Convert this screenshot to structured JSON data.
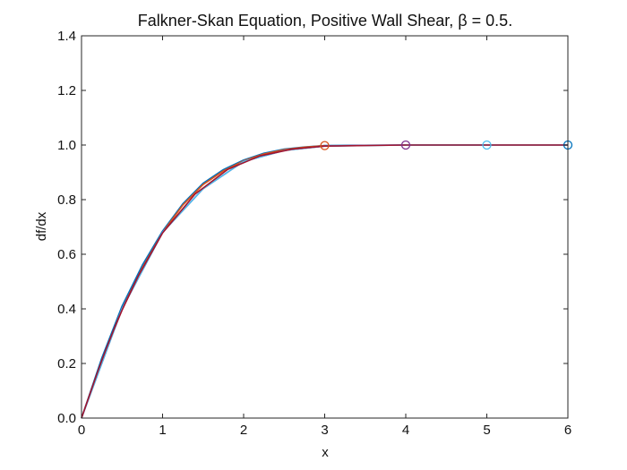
{
  "chart_data": {
    "type": "line",
    "title": "Falkner-Skan Equation, Positive Wall Shear, β = 0.5.",
    "xlabel": "x",
    "ylabel": "df/dx",
    "xlim": [
      0,
      6
    ],
    "ylim": [
      0,
      1.4
    ],
    "xticks": [
      "0",
      "1",
      "2",
      "3",
      "4",
      "5",
      "6"
    ],
    "yticks": [
      "0.0",
      "0.2",
      "0.4",
      "0.6",
      "0.8",
      "1.0",
      "1.2",
      "1.4"
    ],
    "grid": false,
    "series": [
      {
        "color": "#0072BD",
        "x": [
          0,
          0.25,
          0.5,
          0.75,
          1.0,
          1.25,
          1.5,
          1.75,
          2.0,
          2.25,
          2.5,
          2.75,
          3.0,
          4.0,
          5.0,
          6.0
        ],
        "y": [
          0,
          0.22,
          0.41,
          0.56,
          0.685,
          0.785,
          0.86,
          0.91,
          0.945,
          0.97,
          0.985,
          0.993,
          0.998,
          1.0,
          1.0,
          1.0
        ],
        "end_marker": {
          "x": 6,
          "y": 1.0
        }
      },
      {
        "color": "#D95319",
        "x": [
          0,
          0.25,
          0.5,
          0.75,
          1.0,
          1.25,
          1.5,
          1.75,
          2.0,
          2.25,
          2.5,
          2.75,
          3.0
        ],
        "y": [
          0,
          0.21,
          0.4,
          0.55,
          0.68,
          0.78,
          0.855,
          0.905,
          0.942,
          0.967,
          0.983,
          0.992,
          0.998
        ],
        "end_marker": {
          "x": 3,
          "y": 0.998
        }
      },
      {
        "color": "#7E2F8E",
        "x": [
          0,
          0.5,
          1.0,
          1.5,
          2.0,
          2.5,
          3.0,
          3.5,
          4.0
        ],
        "y": [
          0,
          0.4,
          0.68,
          0.84,
          0.94,
          0.98,
          0.996,
          0.999,
          1.0
        ],
        "end_marker": {
          "x": 4,
          "y": 1.0
        }
      },
      {
        "color": "#4DBEEE",
        "x": [
          0,
          0.5,
          1.0,
          1.5,
          2.0,
          2.5,
          3.0,
          4.0,
          5.0
        ],
        "y": [
          0,
          0.4,
          0.68,
          0.84,
          0.94,
          0.98,
          0.996,
          1.0,
          1.0
        ],
        "end_marker": {
          "x": 5,
          "y": 1.0
        }
      },
      {
        "color": "#A2142F",
        "x": [
          0,
          0.1,
          0.2,
          0.3,
          0.4,
          0.5,
          0.7,
          1.0,
          1.4,
          1.8,
          2.2,
          2.6,
          3.0,
          4.0,
          5.0,
          6.0
        ],
        "y": [
          0,
          0.085,
          0.17,
          0.25,
          0.325,
          0.395,
          0.52,
          0.678,
          0.82,
          0.91,
          0.96,
          0.985,
          0.996,
          1.0,
          1.0,
          1.0
        ]
      }
    ]
  }
}
